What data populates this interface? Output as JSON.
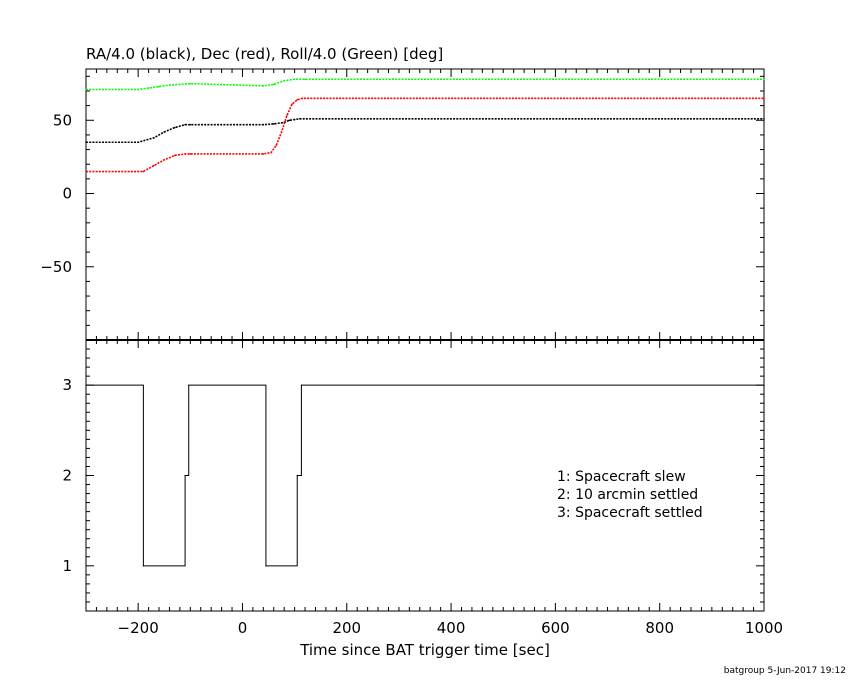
{
  "chart_data": [
    {
      "type": "line",
      "title": "RA/4.0 (black), Dec (red), Roll/4.0 (Green) [deg]",
      "xlim": [
        -300,
        1000
      ],
      "ylim": [
        -100,
        85
      ],
      "yticks": [
        -50,
        0,
        50
      ],
      "ytick_labels": [
        "−50",
        "0",
        "50"
      ],
      "series": [
        {
          "color": "#000000",
          "x": [
            -300,
            -200,
            -170,
            -150,
            -130,
            -110,
            -100,
            40,
            60,
            80,
            90,
            100,
            110,
            1000
          ],
          "y": [
            35,
            35,
            38,
            42,
            45,
            47,
            47,
            47,
            47.5,
            48.5,
            50,
            50.5,
            51,
            51
          ]
        },
        {
          "color": "#ff0000",
          "x": [
            -300,
            -190,
            -170,
            -150,
            -130,
            -110,
            -100,
            40,
            55,
            65,
            75,
            85,
            95,
            105,
            115,
            1000
          ],
          "y": [
            15,
            15,
            19,
            23,
            26,
            27,
            27,
            27,
            28,
            33,
            42,
            53,
            61,
            64,
            65,
            65
          ]
        },
        {
          "color": "#00ff00",
          "x": [
            -300,
            -200,
            -180,
            -160,
            -140,
            -120,
            -100,
            40,
            60,
            80,
            100,
            120,
            1000
          ],
          "y": [
            71,
            71,
            72,
            73,
            74,
            74.5,
            75,
            73.5,
            74.5,
            77,
            78,
            78,
            78
          ]
        }
      ]
    },
    {
      "type": "line",
      "xlim": [
        -300,
        1000
      ],
      "ylim": [
        0.5,
        3.5
      ],
      "xticks": [
        -200,
        0,
        200,
        400,
        600,
        800,
        1000
      ],
      "xtick_labels": [
        "−200",
        "0",
        "200",
        "400",
        "600",
        "800",
        "1000"
      ],
      "yticks": [
        1,
        2,
        3
      ],
      "ytick_labels": [
        "1",
        "2",
        "3"
      ],
      "xlabel": "Time since BAT trigger time [sec]",
      "series": [
        {
          "color": "#000000",
          "step": true,
          "x": [
            -300,
            -190,
            -110,
            -103,
            45,
            105,
            113,
            1000
          ],
          "y": [
            3,
            1,
            2,
            3,
            1,
            2,
            3,
            3
          ]
        }
      ],
      "annotations": [
        "1: Spacecraft slew",
        "2: 10 arcmin settled",
        "3: Spacecraft settled"
      ]
    }
  ],
  "footer": {
    "credit": "batgroup  5-Jun-2017 19:12"
  }
}
